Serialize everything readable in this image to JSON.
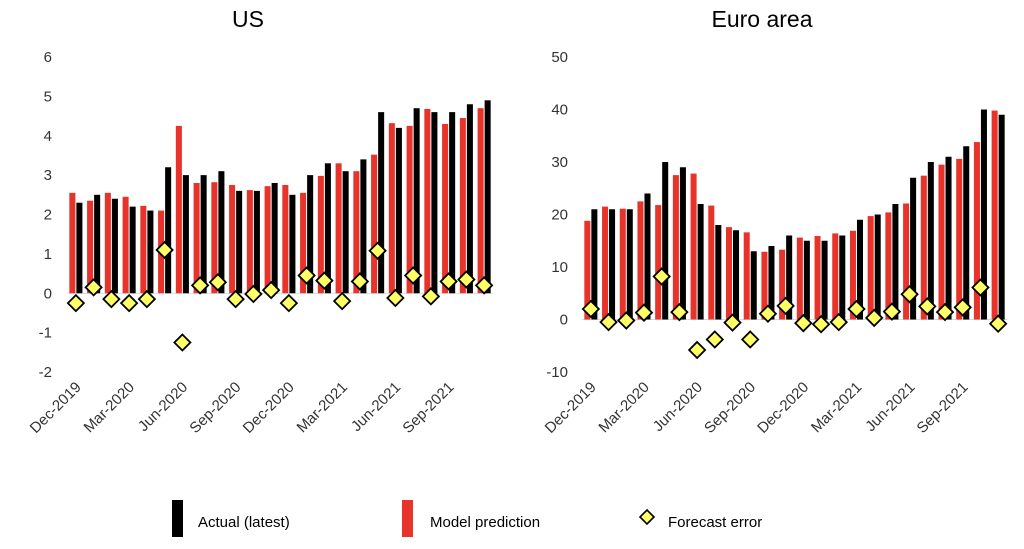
{
  "chart_data": [
    {
      "type": "bar",
      "title": "US",
      "categories": [
        "Dec-2019",
        "Jan-2020",
        "Feb-2020",
        "Mar-2020",
        "Apr-2020",
        "May-2020",
        "Jun-2020",
        "Jul-2020",
        "Aug-2020",
        "Sep-2020",
        "Oct-2020",
        "Nov-2020",
        "Dec-2020",
        "Jan-2021",
        "Feb-2021",
        "Mar-2021",
        "Apr-2021",
        "May-2021",
        "Jun-2021",
        "Jul-2021",
        "Aug-2021",
        "Sep-2021",
        "Oct-2021",
        "Nov-2021"
      ],
      "x_tick_labels": [
        "Dec-2019",
        "Mar-2020",
        "Jun-2020",
        "Sep-2020",
        "Dec-2020",
        "Mar-2021",
        "Jun-2021",
        "Sep-2021"
      ],
      "ylim": [
        -2,
        6
      ],
      "yticks": [
        "-2",
        "-1",
        "0",
        "1",
        "2",
        "3",
        "4",
        "5",
        "6"
      ],
      "series": [
        {
          "name": "Actual (latest)",
          "color": "#000000",
          "values": [
            2.3,
            2.5,
            2.4,
            2.2,
            2.1,
            3.2,
            3.0,
            3.0,
            3.1,
            2.6,
            2.6,
            2.8,
            2.5,
            3.0,
            3.3,
            3.1,
            3.4,
            4.6,
            4.2,
            4.7,
            4.6,
            4.6,
            4.8,
            4.9
          ]
        },
        {
          "name": "Model prediction",
          "color": "#e8332a",
          "values": [
            2.55,
            2.35,
            2.55,
            2.45,
            2.22,
            2.1,
            4.25,
            2.8,
            2.82,
            2.75,
            2.62,
            2.72,
            2.75,
            2.55,
            2.98,
            3.3,
            3.1,
            3.52,
            4.32,
            4.25,
            4.68,
            4.3,
            4.45,
            4.7
          ]
        },
        {
          "name": "Forecast error",
          "color": "#ffff66",
          "values": [
            -0.25,
            0.15,
            -0.15,
            -0.25,
            -0.15,
            1.1,
            -1.25,
            0.2,
            0.28,
            -0.15,
            -0.02,
            0.08,
            -0.25,
            0.45,
            0.32,
            -0.2,
            0.3,
            1.08,
            -0.12,
            0.45,
            -0.08,
            0.3,
            0.35,
            0.2
          ]
        }
      ]
    },
    {
      "type": "bar",
      "title": "Euro area",
      "categories": [
        "Dec-2019",
        "Jan-2020",
        "Feb-2020",
        "Mar-2020",
        "Apr-2020",
        "May-2020",
        "Jun-2020",
        "Jul-2020",
        "Aug-2020",
        "Sep-2020",
        "Oct-2020",
        "Nov-2020",
        "Dec-2020",
        "Jan-2021",
        "Feb-2021",
        "Mar-2021",
        "Apr-2021",
        "May-2021",
        "Jun-2021",
        "Jul-2021",
        "Aug-2021",
        "Sep-2021",
        "Oct-2021",
        "Nov-2021"
      ],
      "x_tick_labels": [
        "Dec-2019",
        "Mar-2020",
        "Jun-2020",
        "Sep-2020",
        "Dec-2020",
        "Mar-2021",
        "Jun-2021",
        "Sep-2021"
      ],
      "ylim": [
        -10,
        50
      ],
      "yticks": [
        "-10",
        "0",
        "10",
        "20",
        "30",
        "40",
        "50"
      ],
      "series": [
        {
          "name": "Actual (latest)",
          "color": "#000000",
          "values": [
            21,
            21,
            21,
            24,
            30,
            29,
            22,
            18,
            17,
            13,
            14,
            16,
            15,
            15,
            16,
            19,
            20,
            22,
            27,
            30,
            31,
            33,
            40,
            39
          ]
        },
        {
          "name": "Model prediction",
          "color": "#e8332a",
          "values": [
            18.8,
            21.5,
            21.1,
            22.5,
            21.8,
            27.5,
            27.8,
            21.7,
            17.6,
            16.6,
            12.9,
            13.3,
            15.6,
            15.9,
            16.4,
            16.9,
            19.7,
            20.4,
            22.1,
            27.4,
            29.5,
            30.6,
            33.8,
            39.8
          ]
        },
        {
          "name": "Forecast error",
          "color": "#ffff66",
          "values": [
            2,
            -0.5,
            -0.2,
            1.3,
            8.2,
            1.4,
            -5.8,
            -3.8,
            -0.6,
            -3.8,
            1.1,
            2.6,
            -0.7,
            -0.9,
            -0.5,
            2,
            0.3,
            1.5,
            4.8,
            2.5,
            1.4,
            2.3,
            6.1,
            -0.8
          ]
        }
      ]
    }
  ],
  "legend": [
    {
      "label": "Actual (latest)",
      "marker": "bar",
      "color": "#000000"
    },
    {
      "label": "Model prediction",
      "marker": "bar",
      "color": "#e8332a"
    },
    {
      "label": "Forecast error",
      "marker": "diamond",
      "color": "#ffff66"
    }
  ]
}
